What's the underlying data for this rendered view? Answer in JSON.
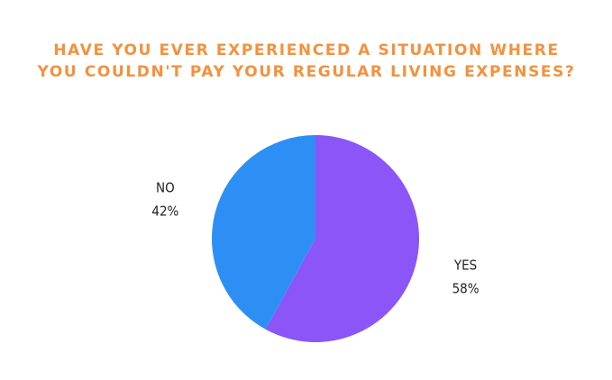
{
  "chart_data": {
    "type": "pie",
    "title": "HAVE YOU EVER EXPERIENCED A SITUATION WHERE YOU COULDN'T PAY YOUR REGULAR LIVING EXPENSES?",
    "categories": [
      "YES",
      "NO"
    ],
    "values": [
      58,
      42
    ],
    "value_labels": [
      "58%",
      "42%"
    ],
    "colors": [
      "#8b55f7",
      "#2d8ff5"
    ]
  }
}
